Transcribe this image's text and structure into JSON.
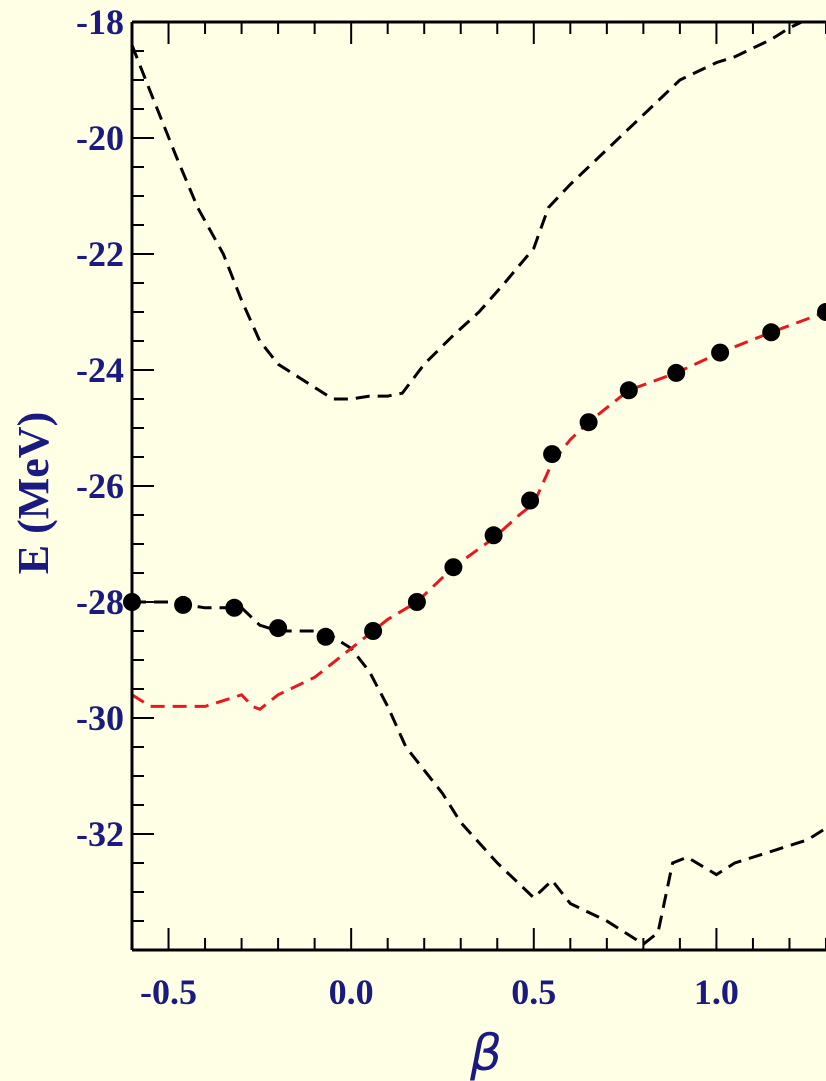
{
  "chart_data": {
    "type": "line",
    "title": "",
    "xlabel": "β",
    "ylabel": "E (MeV)",
    "xlim": [
      -0.6,
      1.3
    ],
    "ylim": [
      -34.0,
      -18.0
    ],
    "x_ticks": [
      -0.5,
      0.0,
      0.5,
      1.0
    ],
    "x_tick_labels": [
      "-0.5",
      "0.0",
      "0.5",
      "1.0"
    ],
    "y_ticks": [
      -18,
      -20,
      -22,
      -24,
      -26,
      -28,
      -30,
      -32
    ],
    "y_tick_labels": [
      "-18",
      "-20",
      "-22",
      "-24",
      "-26",
      "-28",
      "-30",
      "-32"
    ],
    "grid": false,
    "colors": {
      "background": "#ffffe6",
      "label_color": "#1a1a80",
      "axis_color": "#000000",
      "upper_curve": "#000000",
      "lower_black_curve": "#000000",
      "red_curve": "#e8191e",
      "points": "#000000"
    },
    "series": [
      {
        "type": "line",
        "style": "dashed",
        "color": "#000000",
        "x": [
          -0.6,
          -0.55,
          -0.48,
          -0.42,
          -0.35,
          -0.3,
          -0.25,
          -0.2,
          -0.1,
          -0.05,
          0.0,
          0.05,
          0.1,
          0.14,
          0.2,
          0.28,
          0.35,
          0.42,
          0.5,
          0.54,
          0.6,
          0.7,
          0.8,
          0.9,
          1.0,
          1.05,
          1.15,
          1.2,
          1.3
        ],
        "y": [
          -18.4,
          -19.2,
          -20.3,
          -21.2,
          -22.0,
          -22.8,
          -23.5,
          -23.9,
          -24.3,
          -24.5,
          -24.5,
          -24.45,
          -24.45,
          -24.4,
          -23.9,
          -23.4,
          -23.0,
          -22.5,
          -21.9,
          -21.2,
          -20.8,
          -20.2,
          -19.6,
          -19.0,
          -18.7,
          -18.6,
          -18.3,
          -18.1,
          -17.8
        ]
      },
      {
        "type": "line",
        "style": "dashed",
        "color": "#000000",
        "x": [
          -0.6,
          -0.5,
          -0.4,
          -0.3,
          -0.25,
          -0.2,
          -0.1,
          -0.05,
          0.0,
          0.05,
          0.1,
          0.15,
          0.2,
          0.25,
          0.3,
          0.4,
          0.5,
          0.55,
          0.6,
          0.7,
          0.8,
          0.84,
          0.88,
          0.92,
          1.0,
          1.05,
          1.15,
          1.25,
          1.3
        ],
        "y": [
          -28.0,
          -28.0,
          -28.1,
          -28.1,
          -28.4,
          -28.5,
          -28.5,
          -28.6,
          -28.8,
          -29.2,
          -29.8,
          -30.5,
          -30.9,
          -31.3,
          -31.8,
          -32.5,
          -33.1,
          -32.8,
          -33.2,
          -33.5,
          -33.9,
          -33.7,
          -32.5,
          -32.4,
          -32.7,
          -32.5,
          -32.3,
          -32.1,
          -31.9
        ]
      },
      {
        "type": "line",
        "style": "dashed",
        "color": "#e8191e",
        "x": [
          -0.6,
          -0.55,
          -0.5,
          -0.4,
          -0.3,
          -0.27,
          -0.25,
          -0.2,
          -0.1,
          0.0,
          0.06,
          0.1,
          0.18,
          0.28,
          0.39,
          0.46,
          0.5,
          0.55,
          0.6,
          0.65,
          0.76,
          0.89,
          1.01,
          1.15,
          1.3
        ],
        "y": [
          -29.6,
          -29.8,
          -29.8,
          -29.8,
          -29.6,
          -29.8,
          -29.85,
          -29.6,
          -29.3,
          -28.8,
          -28.5,
          -28.3,
          -28.0,
          -27.4,
          -26.9,
          -26.5,
          -26.3,
          -25.6,
          -25.2,
          -24.9,
          -24.35,
          -24.05,
          -23.7,
          -23.35,
          -23.0
        ]
      },
      {
        "type": "scatter",
        "color": "#000000",
        "x": [
          -0.6,
          -0.46,
          -0.32,
          -0.2,
          -0.07,
          0.06,
          0.18,
          0.28,
          0.39,
          0.49,
          0.55,
          0.65,
          0.76,
          0.89,
          1.01,
          1.15,
          1.3
        ],
        "y": [
          -28.0,
          -28.05,
          -28.1,
          -28.45,
          -28.6,
          -28.5,
          -28.0,
          -27.4,
          -26.85,
          -26.25,
          -25.45,
          -24.9,
          -24.35,
          -24.05,
          -23.7,
          -23.35,
          -23.0
        ]
      }
    ]
  }
}
